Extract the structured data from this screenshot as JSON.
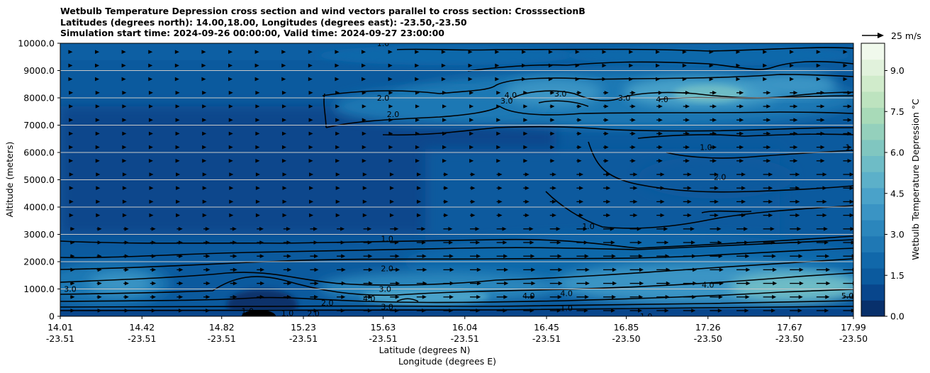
{
  "chart_data": {
    "type": "heatmap",
    "title_lines": [
      "Wetbulb Temperature Depression cross section and wind vectors parallel to cross section: CrosssectionB",
      "Latitudes (degrees north): 14.00,18.00, Longitudes (degrees east): -23.50,-23.50",
      "Simulation start time: 2024-09-26 00:00:00, Valid time: 2024-09-27 23:00:00"
    ],
    "ylabel": "Altitude (meters)",
    "xlabel_1": "Latitude (degrees N)",
    "xlabel_2": "Longitude (degrees E)",
    "x_range": [
      14.01,
      17.99
    ],
    "y_range": [
      0,
      10000
    ],
    "y_ticks": [
      "0",
      "1000.0",
      "2000.0",
      "3000.0",
      "4000.0",
      "5000.0",
      "6000.0",
      "7000.0",
      "8000.0",
      "9000.0",
      "10000.0"
    ],
    "x_ticks": [
      {
        "lat": "14.01",
        "lon": "-23.51"
      },
      {
        "lat": "14.42",
        "lon": "-23.51"
      },
      {
        "lat": "14.82",
        "lon": "-23.51"
      },
      {
        "lat": "15.23",
        "lon": "-23.51"
      },
      {
        "lat": "15.63",
        "lon": "-23.51"
      },
      {
        "lat": "16.04",
        "lon": "-23.51"
      },
      {
        "lat": "16.45",
        "lon": "-23.51"
      },
      {
        "lat": "16.85",
        "lon": "-23.50"
      },
      {
        "lat": "17.26",
        "lon": "-23.50"
      },
      {
        "lat": "17.67",
        "lon": "-23.50"
      },
      {
        "lat": "17.99",
        "lon": "-23.50"
      }
    ],
    "grid": true,
    "colorbar": {
      "label": "Wetbulb Temperature Depression °C",
      "range": [
        0,
        10
      ],
      "ticks": [
        "0.0",
        "1.5",
        "3.0",
        "4.5",
        "6.0",
        "7.5",
        "9.0"
      ],
      "colors": [
        "#08306b",
        "#08468c",
        "#0b5a9e",
        "#1168aa",
        "#1f78b4",
        "#2b86bc",
        "#3a94c4",
        "#4aa2c9",
        "#5cb0c9",
        "#6ebcc6",
        "#80c6c0",
        "#94d0bc",
        "#a8dab8",
        "#bde3bf",
        "#d0ebcb",
        "#e1f2dc",
        "#f0f9ec"
      ]
    },
    "quiver_key": {
      "label": "25 m/s",
      "speed": 25
    },
    "contour_labels": [
      {
        "t": "1.0",
        "x": 15.63,
        "y": 10000
      },
      {
        "t": "2.0",
        "x": 15.63,
        "y": 8000
      },
      {
        "t": "3.0",
        "x": 16.25,
        "y": 7900
      },
      {
        "t": "4.0",
        "x": 16.27,
        "y": 8100
      },
      {
        "t": "3.0",
        "x": 16.84,
        "y": 8000
      },
      {
        "t": "3.0",
        "x": 16.52,
        "y": 8150
      },
      {
        "t": "4.0",
        "x": 17.03,
        "y": 7950
      },
      {
        "t": "2.0",
        "x": 15.68,
        "y": 7400
      },
      {
        "t": "1.0",
        "x": 17.25,
        "y": 6200
      },
      {
        "t": "2.0",
        "x": 17.32,
        "y": 5100
      },
      {
        "t": "1.0",
        "x": 17.98,
        "y": 6200
      },
      {
        "t": "1.0",
        "x": 15.65,
        "y": 2850
      },
      {
        "t": "1.0",
        "x": 16.66,
        "y": 3300
      },
      {
        "t": "2.0",
        "x": 15.65,
        "y": 1750
      },
      {
        "t": "3.0",
        "x": 15.64,
        "y": 1000
      },
      {
        "t": "4.0",
        "x": 15.56,
        "y": 650
      },
      {
        "t": "2.0",
        "x": 15.35,
        "y": 500
      },
      {
        "t": "3.0",
        "x": 15.65,
        "y": 350
      },
      {
        "t": "1.0",
        "x": 15.15,
        "y": 120
      },
      {
        "t": "1.0",
        "x": 15.0,
        "y": 120
      },
      {
        "t": "2.0",
        "x": 15.28,
        "y": 100
      },
      {
        "t": "4.0",
        "x": 16.36,
        "y": 750
      },
      {
        "t": "4.0",
        "x": 16.55,
        "y": 850
      },
      {
        "t": "1.0",
        "x": 16.55,
        "y": 300
      },
      {
        "t": "1.0",
        "x": 16.95,
        "y": 0
      },
      {
        "t": "4.0",
        "x": 17.26,
        "y": 1150
      },
      {
        "t": "5.0",
        "x": 17.96,
        "y": 750
      },
      {
        "t": "3.0",
        "x": 14.06,
        "y": 1000
      },
      {
        "t": "1.0",
        "x": 14.95,
        "y": 200
      }
    ]
  }
}
